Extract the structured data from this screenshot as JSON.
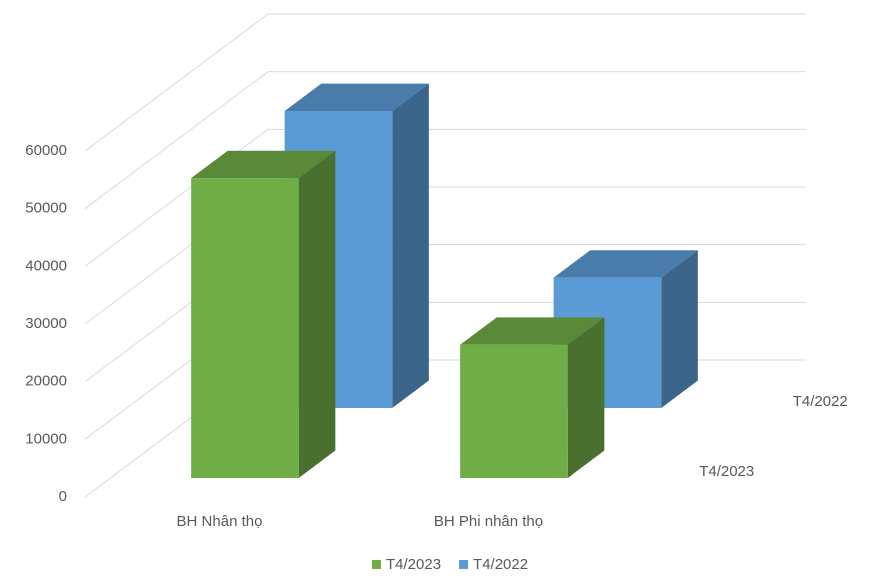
{
  "chart_data": {
    "type": "bar3d",
    "categories": [
      "BH Nhân thọ",
      "BH Phi nhân thọ"
    ],
    "series": [
      {
        "name": "T4/2023",
        "color": "#70ad47",
        "values": [
          52000,
          23100
        ]
      },
      {
        "name": "T4/2022",
        "color": "#5b9bd5",
        "values": [
          51500,
          22600
        ]
      }
    ],
    "ylim": [
      0,
      60000
    ],
    "yticks": [
      0,
      10000,
      20000,
      30000,
      40000,
      50000,
      60000
    ],
    "grid": true,
    "legend": "bottom"
  }
}
